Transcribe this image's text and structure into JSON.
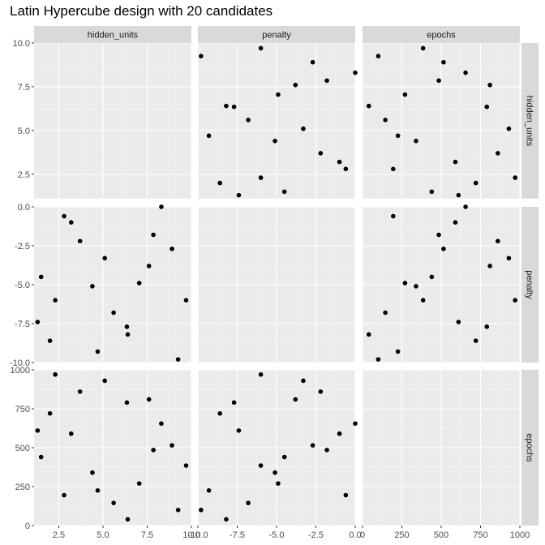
{
  "chart_data": {
    "type": "scatter",
    "title": "Latin Hypercube design with 20 candidates",
    "variables": [
      {
        "name": "hidden_units",
        "range": [
          1.1,
          10.0
        ],
        "ticks": [
          2.5,
          5.0,
          7.5,
          10.0
        ],
        "tick_labels": [
          "2.5",
          "5.0",
          "7.5",
          "10.0"
        ]
      },
      {
        "name": "penalty",
        "range": [
          -10.0,
          0.0
        ],
        "ticks": [
          -10.0,
          -7.5,
          -5.0,
          -2.5,
          0.0
        ],
        "tick_labels": [
          "-10.0",
          "-7.5",
          "-5.0",
          "-2.5",
          "0.0"
        ]
      },
      {
        "name": "epochs",
        "range": [
          0,
          1000
        ],
        "ticks": [
          0,
          250,
          500,
          750,
          1000
        ],
        "tick_labels": [
          "0",
          "250",
          "500",
          "750",
          "1000"
        ]
      }
    ],
    "points": [
      {
        "hidden_units": 1.3,
        "penalty": -7.4,
        "epochs": 610
      },
      {
        "hidden_units": 1.5,
        "penalty": -4.5,
        "epochs": 440
      },
      {
        "hidden_units": 2.0,
        "penalty": -8.6,
        "epochs": 720
      },
      {
        "hidden_units": 2.3,
        "penalty": -6.0,
        "epochs": 970
      },
      {
        "hidden_units": 2.8,
        "penalty": -0.6,
        "epochs": 195
      },
      {
        "hidden_units": 3.2,
        "penalty": -1.0,
        "epochs": 590
      },
      {
        "hidden_units": 3.7,
        "penalty": -2.2,
        "epochs": 860
      },
      {
        "hidden_units": 4.4,
        "penalty": -5.1,
        "epochs": 340
      },
      {
        "hidden_units": 4.7,
        "penalty": -9.3,
        "epochs": 225
      },
      {
        "hidden_units": 5.1,
        "penalty": -3.3,
        "epochs": 930
      },
      {
        "hidden_units": 5.6,
        "penalty": -6.8,
        "epochs": 145
      },
      {
        "hidden_units": 6.35,
        "penalty": -7.7,
        "epochs": 790
      },
      {
        "hidden_units": 6.4,
        "penalty": -8.2,
        "epochs": 40
      },
      {
        "hidden_units": 7.05,
        "penalty": -4.9,
        "epochs": 270
      },
      {
        "hidden_units": 7.6,
        "penalty": -3.8,
        "epochs": 810
      },
      {
        "hidden_units": 7.85,
        "penalty": -1.8,
        "epochs": 485
      },
      {
        "hidden_units": 8.3,
        "penalty": 0.0,
        "epochs": 655
      },
      {
        "hidden_units": 8.9,
        "penalty": -2.7,
        "epochs": 515
      },
      {
        "hidden_units": 9.25,
        "penalty": -9.8,
        "epochs": 100
      },
      {
        "hidden_units": 9.7,
        "penalty": -6.0,
        "epochs": 385
      }
    ],
    "grid": true,
    "layout": "3x3 scatterplot matrix, diagonal panels empty, column strips on top, row strips on right"
  }
}
